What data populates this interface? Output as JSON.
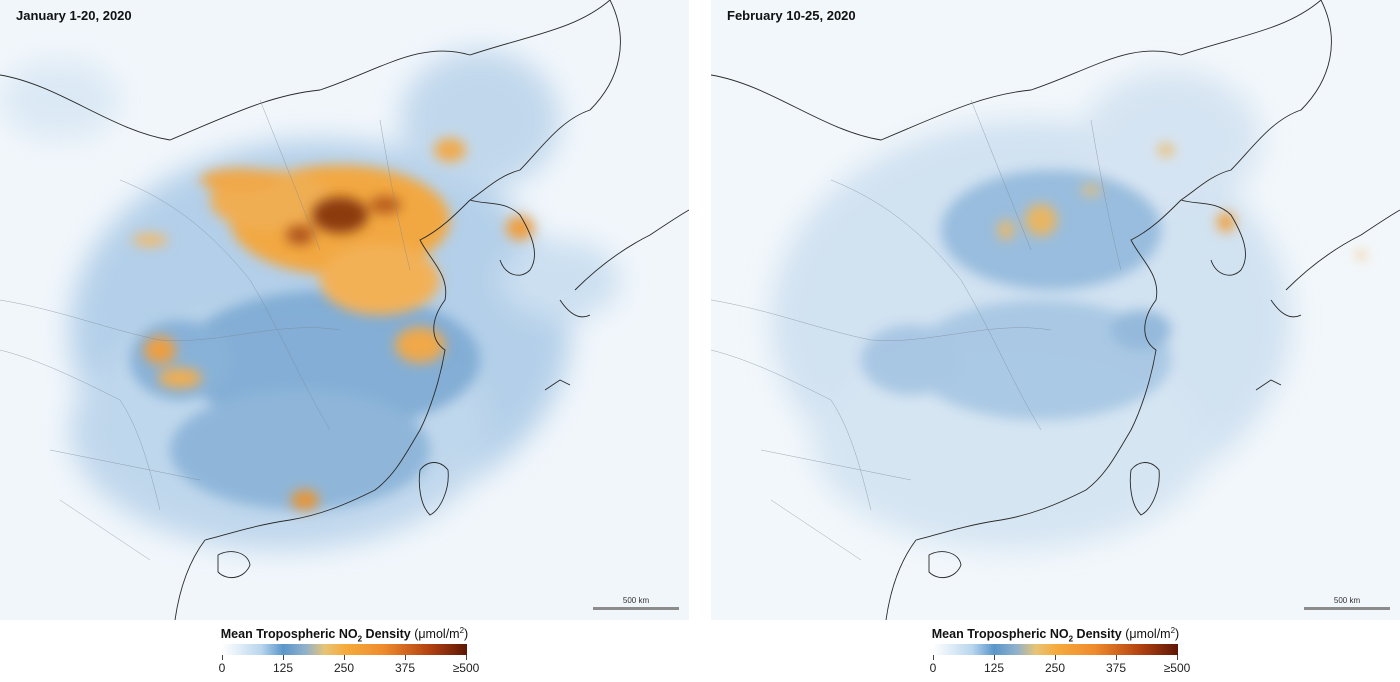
{
  "panels": [
    {
      "date": "January 1-20, 2020",
      "scale_bar": "500 km"
    },
    {
      "date": "February 10-25, 2020",
      "scale_bar": "500 km"
    }
  ],
  "legend": {
    "title": "Mean Tropospheric NO",
    "subscript": "2",
    "title_rest": " Density",
    "unit_prefix": "(μmol/m",
    "unit_superscript": "2",
    "unit_suffix": ")",
    "ticks": [
      "0",
      "125",
      "250",
      "375",
      "≥500"
    ]
  },
  "colors": {
    "low": "#ffffff",
    "mid_low": "#5a96c9",
    "mid": "#f5ac3e",
    "high": "#5e1605",
    "borders": "#2a2a2a"
  }
}
